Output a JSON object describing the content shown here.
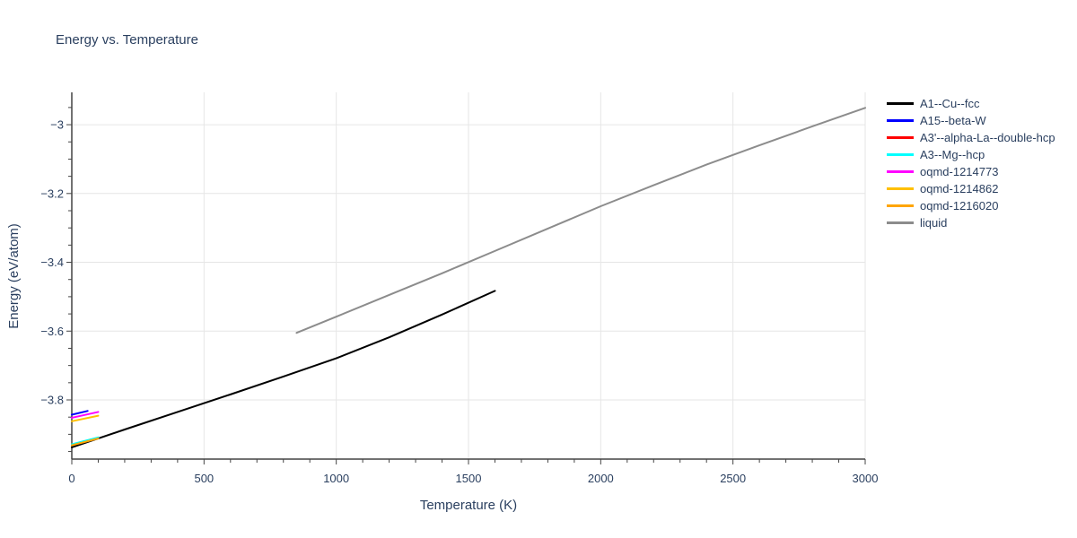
{
  "chart_data": {
    "type": "line",
    "title": "Energy vs. Temperature",
    "xlabel": "Temperature (K)",
    "ylabel": "Energy (eV/atom)",
    "xlim": [
      0,
      3000
    ],
    "ylim": [
      -3.972,
      -2.906
    ],
    "x_major_ticks": [
      0,
      500,
      1000,
      1500,
      2000,
      2500,
      3000
    ],
    "x_tick_labels": [
      "0",
      "500",
      "1000",
      "1500",
      "2000",
      "2500",
      "3000"
    ],
    "x_minor_step": 100,
    "y_major_ticks": [
      -3.8,
      -3.6,
      -3.4,
      -3.2,
      -3.0
    ],
    "y_tick_labels": [
      "−3.8",
      "−3.6",
      "−3.4",
      "−3.2",
      "−3"
    ],
    "y_minor_step": 0.05,
    "grid": "major-only",
    "legend_position": "top-right",
    "colors": {
      "grid": "#e6e6e6",
      "axis": "#444444",
      "text": "#2a3f5f"
    },
    "series": [
      {
        "name": "A1--Cu--fcc",
        "color": "#000000",
        "x": [
          0,
          200,
          400,
          600,
          800,
          1000,
          1200,
          1400,
          1600
        ],
        "y": [
          -3.938,
          -3.886,
          -3.835,
          -3.784,
          -3.732,
          -3.679,
          -3.618,
          -3.552,
          -3.483
        ]
      },
      {
        "name": "A15--beta-W",
        "color": "#0000ff",
        "x": [
          0,
          60
        ],
        "y": [
          -3.843,
          -3.832
        ]
      },
      {
        "name": "A3'--alpha-La--double-hcp",
        "color": "#ff0000",
        "x": [
          0,
          100
        ],
        "y": [
          -3.931,
          -3.911
        ]
      },
      {
        "name": "A3--Mg--hcp",
        "color": "#00ffff",
        "x": [
          0,
          100
        ],
        "y": [
          -3.929,
          -3.909
        ]
      },
      {
        "name": "oqmd-1214773",
        "color": "#ff00ff",
        "x": [
          0,
          100
        ],
        "y": [
          -3.852,
          -3.835
        ]
      },
      {
        "name": "oqmd-1214862",
        "color": "#ffc000",
        "x": [
          0,
          100
        ],
        "y": [
          -3.862,
          -3.846
        ]
      },
      {
        "name": "oqmd-1216020",
        "color": "#ffa500",
        "x": [
          0,
          100
        ],
        "y": [
          -3.932,
          -3.912
        ]
      },
      {
        "name": "liquid",
        "color": "#8c8c8c",
        "x": [
          850,
          1000,
          1200,
          1400,
          1600,
          1800,
          2000,
          2200,
          2400,
          2600,
          2800,
          3000
        ],
        "y": [
          -3.605,
          -3.558,
          -3.495,
          -3.432,
          -3.367,
          -3.302,
          -3.237,
          -3.176,
          -3.116,
          -3.06,
          -3.005,
          -2.951
        ]
      }
    ]
  }
}
